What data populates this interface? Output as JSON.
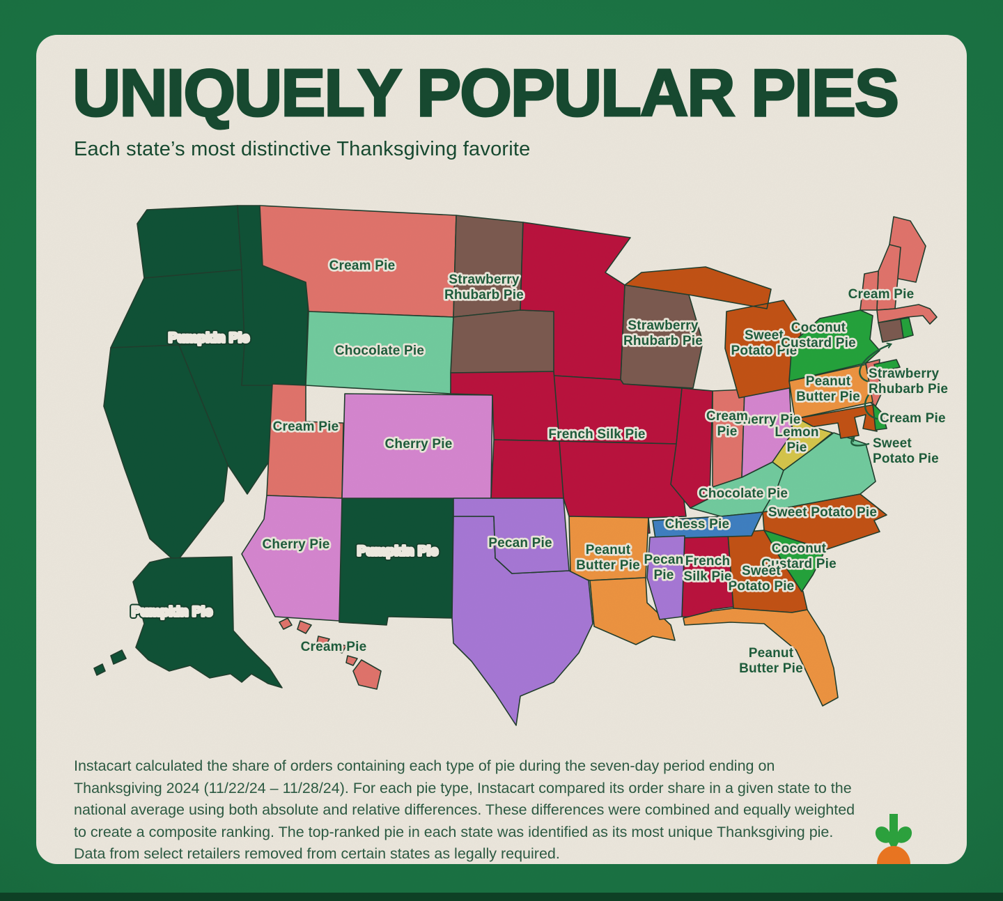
{
  "header": {
    "title": "UNIQUELY POPULAR PIES",
    "subtitle": "Each state’s most distinctive Thanksgiving favorite"
  },
  "footer": {
    "methodology": "Instacart calculated the share of orders containing each type of pie during the seven-day period ending on Thanksgiving 2024 (11/22/24 – 11/28/24). For each pie type, Instacart compared its order share in a given state to the national average using both absolute and relative differences. These differences were combined and equally weighted to create a composite ranking. The top-ranked pie in each state was identified as its most unique Thanksgiving pie. Data from select retailers removed from certain states as legally required."
  },
  "logo": {
    "icon": "instacart-carrot-logo",
    "leaf_color": "#2aa53c",
    "carrot_color": "#f0761e"
  },
  "theme": {
    "frame_green": "#177140",
    "panel_cream": "#f1ece1",
    "title_green": "#14492e",
    "label_dark": "#1b5c3a",
    "label_light": "#f4f0e6",
    "border": "#1e3c2b"
  },
  "map": {
    "pie_types": [
      {
        "name": "Pumpkin Pie",
        "color": "#0c5135"
      },
      {
        "name": "Cream Pie",
        "color": "#e5746b"
      },
      {
        "name": "Chocolate Pie",
        "color": "#72cfa0"
      },
      {
        "name": "Cherry Pie",
        "color": "#d987d3"
      },
      {
        "name": "Strawberry Rhubarb Pie",
        "color": "#7c594f"
      },
      {
        "name": "French Silk Pie",
        "color": "#bd0f3c"
      },
      {
        "name": "Sweet Potato Pie",
        "color": "#c55112"
      },
      {
        "name": "Coconut Custard Pie",
        "color": "#21a53a"
      },
      {
        "name": "Peanut Butter Pie",
        "color": "#f2953f"
      },
      {
        "name": "Lemon Pie",
        "color": "#d9c94a"
      },
      {
        "name": "Chess Pie",
        "color": "#3d80c4"
      },
      {
        "name": "Pecan Pie",
        "color": "#a978d9"
      }
    ],
    "states": [
      {
        "abbr": "WA",
        "name": "Washington",
        "pie": "Pumpkin Pie"
      },
      {
        "abbr": "OR",
        "name": "Oregon",
        "pie": "Pumpkin Pie"
      },
      {
        "abbr": "CA",
        "name": "California",
        "pie": "Pumpkin Pie"
      },
      {
        "abbr": "NV",
        "name": "Nevada",
        "pie": "Pumpkin Pie"
      },
      {
        "abbr": "ID",
        "name": "Idaho",
        "pie": "Pumpkin Pie"
      },
      {
        "abbr": "NM",
        "name": "New Mexico",
        "pie": "Pumpkin Pie"
      },
      {
        "abbr": "AK",
        "name": "Alaska",
        "pie": "Pumpkin Pie"
      },
      {
        "abbr": "MT",
        "name": "Montana",
        "pie": "Cream Pie"
      },
      {
        "abbr": "UT",
        "name": "Utah",
        "pie": "Cream Pie"
      },
      {
        "abbr": "IN",
        "name": "Indiana",
        "pie": "Cream Pie"
      },
      {
        "abbr": "ME",
        "name": "Maine",
        "pie": "Cream Pie"
      },
      {
        "abbr": "NH",
        "name": "New Hampshire",
        "pie": "Cream Pie"
      },
      {
        "abbr": "VT",
        "name": "Vermont",
        "pie": "Cream Pie"
      },
      {
        "abbr": "MA",
        "name": "Massachusetts",
        "pie": "Cream Pie"
      },
      {
        "abbr": "NJ",
        "name": "New Jersey",
        "pie": "Cream Pie"
      },
      {
        "abbr": "HI",
        "name": "Hawaii",
        "pie": "Cream Pie"
      },
      {
        "abbr": "WY",
        "name": "Wyoming",
        "pie": "Chocolate Pie"
      },
      {
        "abbr": "KY",
        "name": "Kentucky",
        "pie": "Chocolate Pie"
      },
      {
        "abbr": "VA",
        "name": "Virginia",
        "pie": "Chocolate Pie"
      },
      {
        "abbr": "CO",
        "name": "Colorado",
        "pie": "Cherry Pie"
      },
      {
        "abbr": "AZ",
        "name": "Arizona",
        "pie": "Cherry Pie"
      },
      {
        "abbr": "OH",
        "name": "Ohio",
        "pie": "Cherry Pie"
      },
      {
        "abbr": "ND",
        "name": "North Dakota",
        "pie": "Strawberry Rhubarb Pie"
      },
      {
        "abbr": "SD",
        "name": "South Dakota",
        "pie": "Strawberry Rhubarb Pie"
      },
      {
        "abbr": "WI",
        "name": "Wisconsin",
        "pie": "Strawberry Rhubarb Pie"
      },
      {
        "abbr": "CT",
        "name": "Connecticut",
        "pie": "Strawberry Rhubarb Pie"
      },
      {
        "abbr": "MN",
        "name": "Minnesota",
        "pie": "French Silk Pie"
      },
      {
        "abbr": "IA",
        "name": "Iowa",
        "pie": "French Silk Pie"
      },
      {
        "abbr": "MO",
        "name": "Missouri",
        "pie": "French Silk Pie"
      },
      {
        "abbr": "IL",
        "name": "Illinois",
        "pie": "French Silk Pie"
      },
      {
        "abbr": "NE",
        "name": "Nebraska",
        "pie": "French Silk Pie"
      },
      {
        "abbr": "KS",
        "name": "Kansas",
        "pie": "French Silk Pie"
      },
      {
        "abbr": "AL",
        "name": "Alabama",
        "pie": "French Silk Pie"
      },
      {
        "abbr": "MI",
        "name": "Michigan",
        "pie": "Sweet Potato Pie"
      },
      {
        "abbr": "NC",
        "name": "North Carolina",
        "pie": "Sweet Potato Pie"
      },
      {
        "abbr": "GA",
        "name": "Georgia",
        "pie": "Sweet Potato Pie"
      },
      {
        "abbr": "MD",
        "name": "Maryland",
        "pie": "Sweet Potato Pie"
      },
      {
        "abbr": "NY",
        "name": "New York",
        "pie": "Coconut Custard Pie"
      },
      {
        "abbr": "RI",
        "name": "Rhode Island",
        "pie": "Coconut Custard Pie"
      },
      {
        "abbr": "DE",
        "name": "Delaware",
        "pie": "Coconut Custard Pie"
      },
      {
        "abbr": "SC",
        "name": "South Carolina",
        "pie": "Coconut Custard Pie"
      },
      {
        "abbr": "PA",
        "name": "Pennsylvania",
        "pie": "Peanut Butter Pie"
      },
      {
        "abbr": "AR",
        "name": "Arkansas",
        "pie": "Peanut Butter Pie"
      },
      {
        "abbr": "LA",
        "name": "Louisiana",
        "pie": "Peanut Butter Pie"
      },
      {
        "abbr": "FL",
        "name": "Florida",
        "pie": "Peanut Butter Pie"
      },
      {
        "abbr": "WV",
        "name": "West Virginia",
        "pie": "Lemon Pie"
      },
      {
        "abbr": "TN",
        "name": "Tennessee",
        "pie": "Chess Pie"
      },
      {
        "abbr": "TX",
        "name": "Texas",
        "pie": "Pecan Pie"
      },
      {
        "abbr": "OK",
        "name": "Oklahoma",
        "pie": "Pecan Pie"
      },
      {
        "abbr": "MS",
        "name": "Mississippi",
        "pie": "Pecan Pie"
      }
    ],
    "labels": [
      {
        "id": "west",
        "text": "Pumpkin Pie",
        "style": "light"
      },
      {
        "id": "mt",
        "text": "Cream Pie",
        "style": "dark"
      },
      {
        "id": "dakotas",
        "text": "Strawberry\nRhubarb Pie",
        "style": "dark"
      },
      {
        "id": "wy",
        "text": "Chocolate Pie",
        "style": "dark"
      },
      {
        "id": "ut",
        "text": "Cream Pie",
        "style": "dark"
      },
      {
        "id": "co",
        "text": "Cherry Pie",
        "style": "dark"
      },
      {
        "id": "az",
        "text": "Cherry Pie",
        "style": "dark"
      },
      {
        "id": "nm",
        "text": "Pumpkin Pie",
        "style": "light"
      },
      {
        "id": "central",
        "text": "French Silk Pie",
        "style": "dark"
      },
      {
        "id": "wi",
        "text": "Strawberry\nRhubarb Pie",
        "style": "dark"
      },
      {
        "id": "mi",
        "text": "Sweet\nPotato Pie",
        "style": "dark"
      },
      {
        "id": "oh",
        "text": "Cherry Pie",
        "style": "dark"
      },
      {
        "id": "in",
        "text": "Cream\nPie",
        "style": "dark"
      },
      {
        "id": "wv",
        "text": "Lemon\nPie",
        "style": "dark"
      },
      {
        "id": "kyva",
        "text": "Chocolate Pie",
        "style": "dark"
      },
      {
        "id": "tn",
        "text": "Chess Pie",
        "style": "dark"
      },
      {
        "id": "nc",
        "text": "Sweet Potato Pie",
        "style": "dark"
      },
      {
        "id": "sc",
        "text": "Coconut\nCustard Pie",
        "style": "dark"
      },
      {
        "id": "ga",
        "text": "Sweet\nPotato Pie",
        "style": "dark"
      },
      {
        "id": "al",
        "text": "French\nSilk Pie",
        "style": "dark"
      },
      {
        "id": "ms",
        "text": "Pecan\nPie",
        "style": "dark"
      },
      {
        "id": "txok",
        "text": "Pecan Pie",
        "style": "dark"
      },
      {
        "id": "arla",
        "text": "Peanut\nButter Pie",
        "style": "dark"
      },
      {
        "id": "fl",
        "text": "Peanut\nButter Pie",
        "style": "dark"
      },
      {
        "id": "ny",
        "text": "Coconut\nCustard Pie",
        "style": "dark"
      },
      {
        "id": "pa",
        "text": "Peanut\nButter Pie",
        "style": "dark"
      },
      {
        "id": "necream",
        "text": "Cream Pie",
        "style": "dark"
      },
      {
        "id": "ct_callout",
        "text": "Strawberry\nRhubarb Pie",
        "style": "dark",
        "arrow_to": "Connecticut"
      },
      {
        "id": "nj_callout",
        "text": "Cream Pie",
        "style": "dark",
        "arrow_to": "New Jersey"
      },
      {
        "id": "md_callout",
        "text": "Sweet\nPotato Pie",
        "style": "dark",
        "arrow_to": "Maryland"
      },
      {
        "id": "ak",
        "text": "Pumpkin Pie",
        "style": "light"
      },
      {
        "id": "hi",
        "text": "Cream Pie",
        "style": "dark"
      }
    ]
  }
}
